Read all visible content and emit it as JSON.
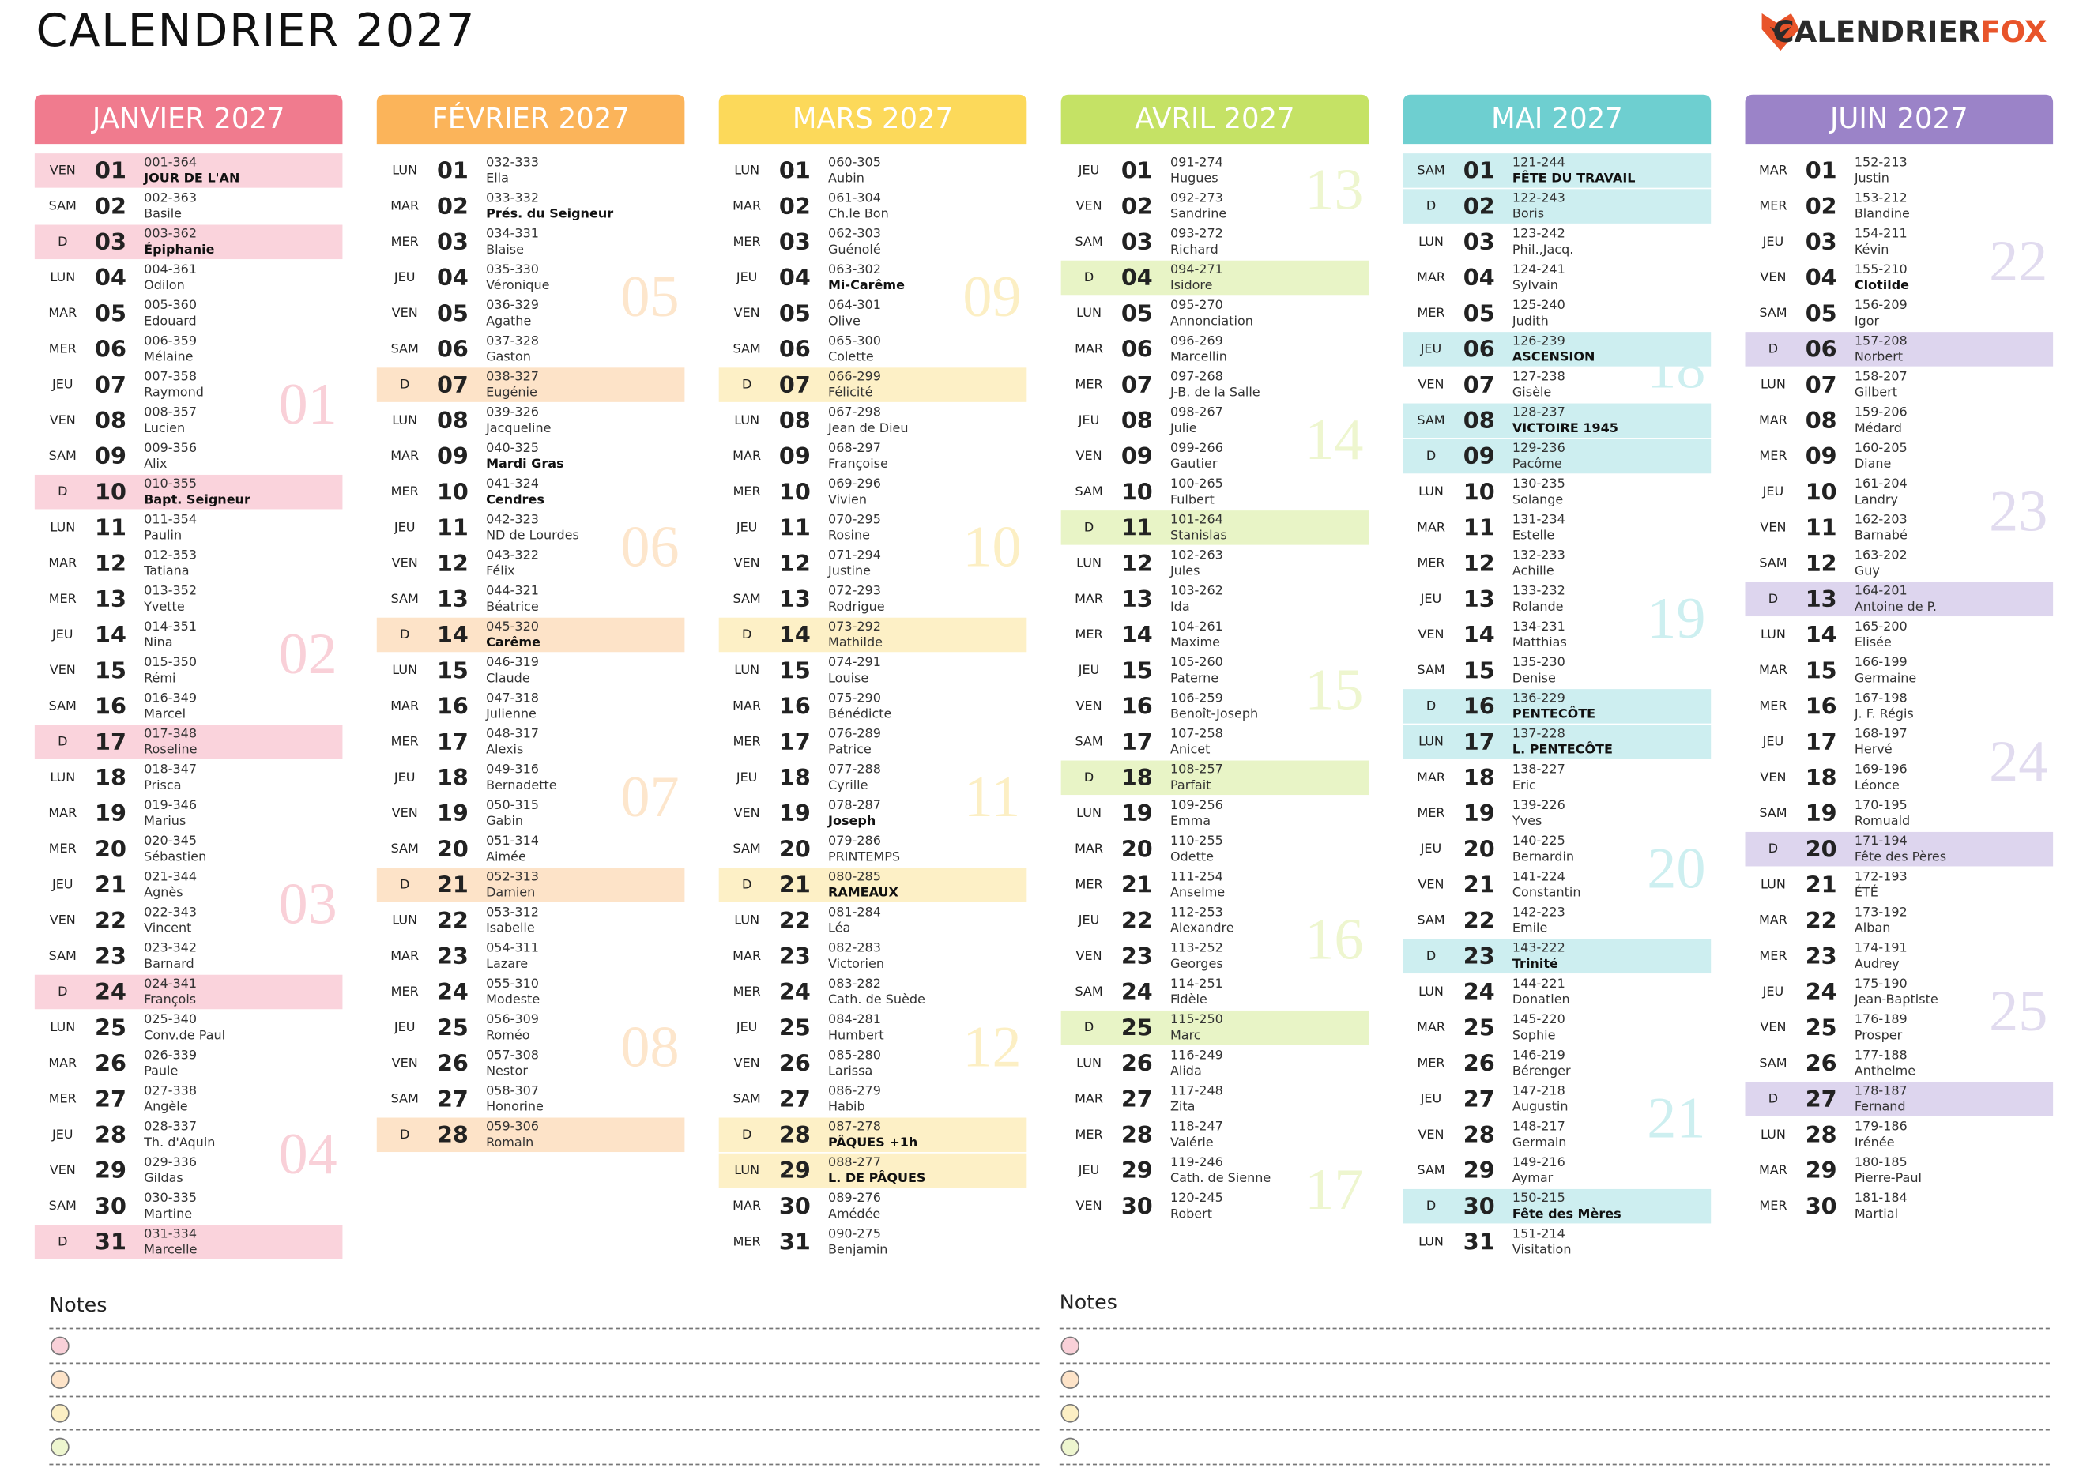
{
  "header": {
    "title": "CALENDRIER 2027",
    "logo": [
      "CALENDRIER",
      "FOX"
    ]
  },
  "months": [
    {
      "title": "JANVIER 2027",
      "color": "#f07b8e",
      "highlight_color": "#fad3dc",
      "week_color": "#f9d0d8",
      "bold": [
        0,
        2,
        9
      ],
      "highlight": [
        0,
        2,
        9,
        16,
        23,
        30
      ],
      "weeks": [
        "01",
        "02",
        "03",
        "04"
      ],
      "days": [
        [
          "VEN",
          "01",
          "001-364",
          "JOUR DE L'AN"
        ],
        [
          "SAM",
          "02",
          "002-363",
          "Basile"
        ],
        [
          "D",
          "03",
          "003-362",
          "Épiphanie"
        ],
        [
          "LUN",
          "04",
          "004-361",
          "Odilon"
        ],
        [
          "MAR",
          "05",
          "005-360",
          "Edouard"
        ],
        [
          "MER",
          "06",
          "006-359",
          "Mélaine"
        ],
        [
          "JEU",
          "07",
          "007-358",
          "Raymond"
        ],
        [
          "VEN",
          "08",
          "008-357",
          "Lucien"
        ],
        [
          "SAM",
          "09",
          "009-356",
          "Alix"
        ],
        [
          "D",
          "10",
          "010-355",
          "Bapt. Seigneur"
        ],
        [
          "LUN",
          "11",
          "011-354",
          "Paulin"
        ],
        [
          "MAR",
          "12",
          "012-353",
          "Tatiana"
        ],
        [
          "MER",
          "13",
          "013-352",
          "Yvette"
        ],
        [
          "JEU",
          "14",
          "014-351",
          "Nina"
        ],
        [
          "VEN",
          "15",
          "015-350",
          "Rémi"
        ],
        [
          "SAM",
          "16",
          "016-349",
          "Marcel"
        ],
        [
          "D",
          "17",
          "017-348",
          "Roseline"
        ],
        [
          "LUN",
          "18",
          "018-347",
          "Prisca"
        ],
        [
          "MAR",
          "19",
          "019-346",
          "Marius"
        ],
        [
          "MER",
          "20",
          "020-345",
          "Sébastien"
        ],
        [
          "JEU",
          "21",
          "021-344",
          "Agnès"
        ],
        [
          "VEN",
          "22",
          "022-343",
          "Vincent"
        ],
        [
          "SAM",
          "23",
          "023-342",
          "Barnard"
        ],
        [
          "D",
          "24",
          "024-341",
          "François"
        ],
        [
          "LUN",
          "25",
          "025-340",
          "Conv.de Paul"
        ],
        [
          "MAR",
          "26",
          "026-339",
          "Paule"
        ],
        [
          "MER",
          "27",
          "027-338",
          "Angèle"
        ],
        [
          "JEU",
          "28",
          "028-337",
          "Th. d'Aquin"
        ],
        [
          "VEN",
          "29",
          "029-336",
          "Gildas"
        ],
        [
          "SAM",
          "30",
          "030-335",
          "Martine"
        ],
        [
          "D",
          "31",
          "031-334",
          "Marcelle"
        ]
      ]
    },
    {
      "title": "FÉVRIER 2027",
      "color": "#fbb45a",
      "highlight_color": "#fde3c8",
      "week_color": "#fde6cc",
      "bold": [
        1,
        8,
        9,
        13
      ],
      "highlight": [
        6,
        13,
        20,
        27
      ],
      "weeks": [
        "05",
        "06",
        "07",
        "08"
      ],
      "days": [
        [
          "LUN",
          "01",
          "032-333",
          "Ella"
        ],
        [
          "MAR",
          "02",
          "033-332",
          "Prés. du Seigneur"
        ],
        [
          "MER",
          "03",
          "034-331",
          "Blaise"
        ],
        [
          "JEU",
          "04",
          "035-330",
          "Véronique"
        ],
        [
          "VEN",
          "05",
          "036-329",
          "Agathe"
        ],
        [
          "SAM",
          "06",
          "037-328",
          "Gaston"
        ],
        [
          "D",
          "07",
          "038-327",
          "Eugénie"
        ],
        [
          "LUN",
          "08",
          "039-326",
          "Jacqueline"
        ],
        [
          "MAR",
          "09",
          "040-325",
          "Mardi Gras"
        ],
        [
          "MER",
          "10",
          "041-324",
          "Cendres"
        ],
        [
          "JEU",
          "11",
          "042-323",
          "ND de Lourdes"
        ],
        [
          "VEN",
          "12",
          "043-322",
          "Félix"
        ],
        [
          "SAM",
          "13",
          "044-321",
          "Béatrice"
        ],
        [
          "D",
          "14",
          "045-320",
          "Carême"
        ],
        [
          "LUN",
          "15",
          "046-319",
          "Claude"
        ],
        [
          "MAR",
          "16",
          "047-318",
          "Julienne"
        ],
        [
          "MER",
          "17",
          "048-317",
          "Alexis"
        ],
        [
          "JEU",
          "18",
          "049-316",
          "Bernadette"
        ],
        [
          "VEN",
          "19",
          "050-315",
          "Gabin"
        ],
        [
          "SAM",
          "20",
          "051-314",
          "Aimée"
        ],
        [
          "D",
          "21",
          "052-313",
          "Damien"
        ],
        [
          "LUN",
          "22",
          "053-312",
          "Isabelle"
        ],
        [
          "MAR",
          "23",
          "054-311",
          "Lazare"
        ],
        [
          "MER",
          "24",
          "055-310",
          "Modeste"
        ],
        [
          "JEU",
          "25",
          "056-309",
          "Roméo"
        ],
        [
          "VEN",
          "26",
          "057-308",
          "Nestor"
        ],
        [
          "SAM",
          "27",
          "058-307",
          "Honorine"
        ],
        [
          "D",
          "28",
          "059-306",
          "Romain"
        ]
      ]
    },
    {
      "title": "MARS 2027",
      "color": "#fcd95a",
      "highlight_color": "#fdf0c6",
      "week_color": "#fcefc4",
      "bold": [
        3,
        18,
        20,
        27,
        28
      ],
      "highlight": [
        6,
        13,
        20,
        27,
        28
      ],
      "weeks": [
        "09",
        "10",
        "11",
        "12"
      ],
      "days": [
        [
          "LUN",
          "01",
          "060-305",
          "Aubin"
        ],
        [
          "MAR",
          "02",
          "061-304",
          "Ch.le Bon"
        ],
        [
          "MER",
          "03",
          "062-303",
          "Guénolé"
        ],
        [
          "JEU",
          "04",
          "063-302",
          "Mi-Carême"
        ],
        [
          "VEN",
          "05",
          "064-301",
          "Olive"
        ],
        [
          "SAM",
          "06",
          "065-300",
          "Colette"
        ],
        [
          "D",
          "07",
          "066-299",
          "Félicité"
        ],
        [
          "LUN",
          "08",
          "067-298",
          "Jean de Dieu"
        ],
        [
          "MAR",
          "09",
          "068-297",
          "Françoise"
        ],
        [
          "MER",
          "10",
          "069-296",
          "Vivien"
        ],
        [
          "JEU",
          "11",
          "070-295",
          "Rosine"
        ],
        [
          "VEN",
          "12",
          "071-294",
          "Justine"
        ],
        [
          "SAM",
          "13",
          "072-293",
          "Rodrigue"
        ],
        [
          "D",
          "14",
          "073-292",
          "Mathilde"
        ],
        [
          "LUN",
          "15",
          "074-291",
          "Louise"
        ],
        [
          "MAR",
          "16",
          "075-290",
          "Bénédicte"
        ],
        [
          "MER",
          "17",
          "076-289",
          "Patrice"
        ],
        [
          "JEU",
          "18",
          "077-288",
          "Cyrille"
        ],
        [
          "VEN",
          "19",
          "078-287",
          "Joseph"
        ],
        [
          "SAM",
          "20",
          "079-286",
          "PRINTEMPS"
        ],
        [
          "D",
          "21",
          "080-285",
          "RAMEAUX"
        ],
        [
          "LUN",
          "22",
          "081-284",
          "Léa"
        ],
        [
          "MAR",
          "23",
          "082-283",
          "Victorien"
        ],
        [
          "MER",
          "24",
          "083-282",
          "Cath. de Suède"
        ],
        [
          "JEU",
          "25",
          "084-281",
          "Humbert"
        ],
        [
          "VEN",
          "26",
          "085-280",
          "Larissa"
        ],
        [
          "SAM",
          "27",
          "086-279",
          "Habib"
        ],
        [
          "D",
          "28",
          "087-278",
          "PÂQUES +1h"
        ],
        [
          "LUN",
          "29",
          "088-277",
          "L. DE PÂQUES"
        ],
        [
          "MAR",
          "30",
          "089-276",
          "Amédée"
        ],
        [
          "MER",
          "31",
          "090-275",
          "Benjamin"
        ]
      ]
    },
    {
      "title": "AVRIL 2027",
      "color": "#c5e265",
      "highlight_color": "#e8f4c6",
      "week_color": "#eef6cf",
      "bold": [],
      "highlight": [
        3,
        10,
        17,
        24
      ],
      "weeks": [
        "13",
        "14",
        "15",
        "16",
        "17"
      ],
      "days": [
        [
          "JEU",
          "01",
          "091-274",
          "Hugues"
        ],
        [
          "VEN",
          "02",
          "092-273",
          "Sandrine"
        ],
        [
          "SAM",
          "03",
          "093-272",
          "Richard"
        ],
        [
          "D",
          "04",
          "094-271",
          "Isidore"
        ],
        [
          "LUN",
          "05",
          "095-270",
          "Annonciation"
        ],
        [
          "MAR",
          "06",
          "096-269",
          "Marcellin"
        ],
        [
          "MER",
          "07",
          "097-268",
          "J-B. de la Salle"
        ],
        [
          "JEU",
          "08",
          "098-267",
          "Julie"
        ],
        [
          "VEN",
          "09",
          "099-266",
          "Gautier"
        ],
        [
          "SAM",
          "10",
          "100-265",
          "Fulbert"
        ],
        [
          "D",
          "11",
          "101-264",
          "Stanislas"
        ],
        [
          "LUN",
          "12",
          "102-263",
          "Jules"
        ],
        [
          "MAR",
          "13",
          "103-262",
          "Ida"
        ],
        [
          "MER",
          "14",
          "104-261",
          "Maxime"
        ],
        [
          "JEU",
          "15",
          "105-260",
          "Paterne"
        ],
        [
          "VEN",
          "16",
          "106-259",
          "Benoît-Joseph"
        ],
        [
          "SAM",
          "17",
          "107-258",
          "Anicet"
        ],
        [
          "D",
          "18",
          "108-257",
          "Parfait"
        ],
        [
          "LUN",
          "19",
          "109-256",
          "Emma"
        ],
        [
          "MAR",
          "20",
          "110-255",
          "Odette"
        ],
        [
          "MER",
          "21",
          "111-254",
          "Anselme"
        ],
        [
          "JEU",
          "22",
          "112-253",
          "Alexandre"
        ],
        [
          "VEN",
          "23",
          "113-252",
          "Georges"
        ],
        [
          "SAM",
          "24",
          "114-251",
          "Fidèle"
        ],
        [
          "D",
          "25",
          "115-250",
          "Marc"
        ],
        [
          "LUN",
          "26",
          "116-249",
          "Alida"
        ],
        [
          "MAR",
          "27",
          "117-248",
          "Zita"
        ],
        [
          "MER",
          "28",
          "118-247",
          "Valérie"
        ],
        [
          "JEU",
          "29",
          "119-246",
          "Cath. de Sienne"
        ],
        [
          "VEN",
          "30",
          "120-245",
          "Robert"
        ]
      ]
    },
    {
      "title": "MAI 2027",
      "color": "#6ecfd0",
      "highlight_color": "#cdeef0",
      "week_color": "#cdeff0",
      "bold": [
        0,
        5,
        7,
        15,
        16,
        22,
        29
      ],
      "highlight": [
        0,
        1,
        5,
        7,
        8,
        15,
        16,
        22,
        29
      ],
      "weeks": [
        "18",
        "19",
        "20",
        "21"
      ],
      "days": [
        [
          "SAM",
          "01",
          "121-244",
          "FÊTE DU TRAVAIL"
        ],
        [
          "D",
          "02",
          "122-243",
          "Boris"
        ],
        [
          "LUN",
          "03",
          "123-242",
          "Phil.,Jacq."
        ],
        [
          "MAR",
          "04",
          "124-241",
          "Sylvain"
        ],
        [
          "MER",
          "05",
          "125-240",
          "Judith"
        ],
        [
          "JEU",
          "06",
          "126-239",
          "ASCENSION"
        ],
        [
          "VEN",
          "07",
          "127-238",
          "Gisèle"
        ],
        [
          "SAM",
          "08",
          "128-237",
          "VICTOIRE 1945"
        ],
        [
          "D",
          "09",
          "129-236",
          "Pacôme"
        ],
        [
          "LUN",
          "10",
          "130-235",
          "Solange"
        ],
        [
          "MAR",
          "11",
          "131-234",
          "Estelle"
        ],
        [
          "MER",
          "12",
          "132-233",
          "Achille"
        ],
        [
          "JEU",
          "13",
          "133-232",
          "Rolande"
        ],
        [
          "VEN",
          "14",
          "134-231",
          "Matthias"
        ],
        [
          "SAM",
          "15",
          "135-230",
          "Denise"
        ],
        [
          "D",
          "16",
          "136-229",
          "PENTECÔTE"
        ],
        [
          "LUN",
          "17",
          "137-228",
          "L. PENTECÔTE"
        ],
        [
          "MAR",
          "18",
          "138-227",
          "Eric"
        ],
        [
          "MER",
          "19",
          "139-226",
          "Yves"
        ],
        [
          "JEU",
          "20",
          "140-225",
          "Bernardin"
        ],
        [
          "VEN",
          "21",
          "141-224",
          "Constantin"
        ],
        [
          "SAM",
          "22",
          "142-223",
          "Emile"
        ],
        [
          "D",
          "23",
          "143-222",
          "Trinité"
        ],
        [
          "LUN",
          "24",
          "144-221",
          "Donatien"
        ],
        [
          "MAR",
          "25",
          "145-220",
          "Sophie"
        ],
        [
          "MER",
          "26",
          "146-219",
          "Bérenger"
        ],
        [
          "JEU",
          "27",
          "147-218",
          "Augustin"
        ],
        [
          "VEN",
          "28",
          "148-217",
          "Germain"
        ],
        [
          "SAM",
          "29",
          "149-216",
          "Aymar"
        ],
        [
          "D",
          "30",
          "150-215",
          "Fête des Mères"
        ],
        [
          "LUN",
          "31",
          "151-214",
          "Visitation"
        ]
      ]
    },
    {
      "title": "JUIN 2027",
      "color": "#9b83c8",
      "highlight_color": "#ddd5ee",
      "week_color": "#e1dbef",
      "bold": [
        3
      ],
      "highlight": [
        5,
        12,
        19,
        26
      ],
      "weeks": [
        "22",
        "23",
        "24",
        "25"
      ],
      "days": [
        [
          "MAR",
          "01",
          "152-213",
          "Justin"
        ],
        [
          "MER",
          "02",
          "153-212",
          "Blandine"
        ],
        [
          "JEU",
          "03",
          "154-211",
          "Kévin"
        ],
        [
          "VEN",
          "04",
          "155-210",
          "Clotilde"
        ],
        [
          "SAM",
          "05",
          "156-209",
          "Igor"
        ],
        [
          "D",
          "06",
          "157-208",
          "Norbert"
        ],
        [
          "LUN",
          "07",
          "158-207",
          "Gilbert"
        ],
        [
          "MAR",
          "08",
          "159-206",
          "Médard"
        ],
        [
          "MER",
          "09",
          "160-205",
          "Diane"
        ],
        [
          "JEU",
          "10",
          "161-204",
          "Landry"
        ],
        [
          "VEN",
          "11",
          "162-203",
          "Barnabé"
        ],
        [
          "SAM",
          "12",
          "163-202",
          "Guy"
        ],
        [
          "D",
          "13",
          "164-201",
          "Antoine de P."
        ],
        [
          "LUN",
          "14",
          "165-200",
          "Elisée"
        ],
        [
          "MAR",
          "15",
          "166-199",
          "Germaine"
        ],
        [
          "MER",
          "16",
          "167-198",
          "J. F. Régis"
        ],
        [
          "JEU",
          "17",
          "168-197",
          "Hervé"
        ],
        [
          "VEN",
          "18",
          "169-196",
          "Léonce"
        ],
        [
          "SAM",
          "19",
          "170-195",
          "Romuald"
        ],
        [
          "D",
          "20",
          "171-194",
          "Fête des Pères"
        ],
        [
          "LUN",
          "21",
          "172-193",
          "ÉTÉ"
        ],
        [
          "MAR",
          "22",
          "173-192",
          "Alban"
        ],
        [
          "MER",
          "23",
          "174-191",
          "Audrey"
        ],
        [
          "JEU",
          "24",
          "175-190",
          "Jean-Baptiste"
        ],
        [
          "VEN",
          "25",
          "176-189",
          "Prosper"
        ],
        [
          "SAM",
          "26",
          "177-188",
          "Anthelme"
        ],
        [
          "D",
          "27",
          "178-187",
          "Fernand"
        ],
        [
          "LUN",
          "28",
          "179-186",
          "Irénée"
        ],
        [
          "MAR",
          "29",
          "180-185",
          "Pierre-Paul"
        ],
        [
          "MER",
          "30",
          "181-184",
          "Martial"
        ]
      ]
    }
  ],
  "notes": [
    "Notes",
    "Notes"
  ]
}
